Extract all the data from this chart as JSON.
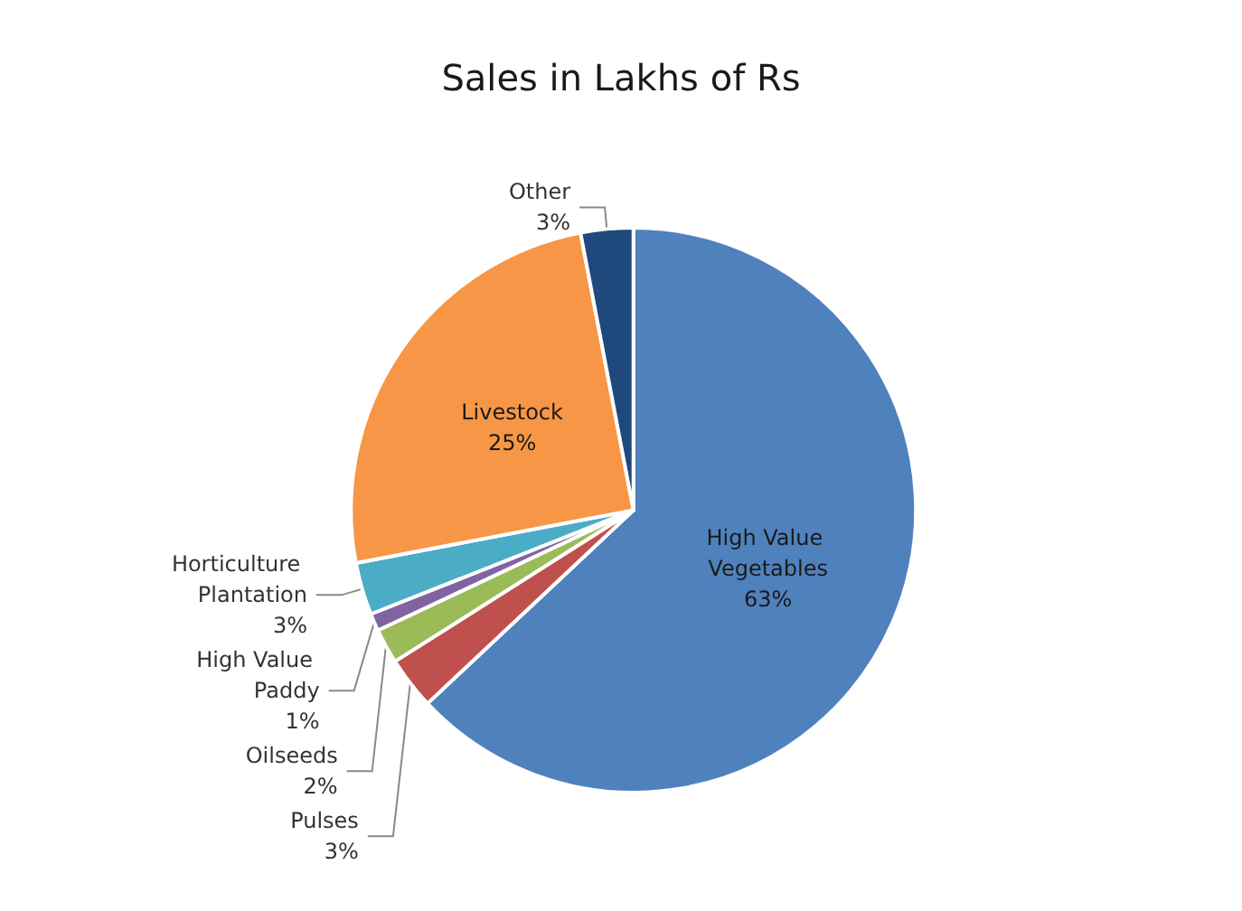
{
  "chart_data": {
    "type": "pie",
    "title": "Sales in Lakhs of Rs",
    "categories": [
      "High Value Vegetables",
      "Pulses",
      "Oilseeds",
      "High Value Paddy",
      "Horticulture Plantation",
      "Livestock",
      "Other"
    ],
    "values": [
      63,
      3,
      2,
      1,
      3,
      25,
      3
    ],
    "value_labels": [
      "63%",
      "3%",
      "2%",
      "1%",
      "3%",
      "25%",
      "3%"
    ],
    "colors": [
      "#4f81bd",
      "#c0504d",
      "#9bbb59",
      "#8064a2",
      "#4bacc6",
      "#f79646",
      "#1f497d"
    ],
    "legend": false
  }
}
